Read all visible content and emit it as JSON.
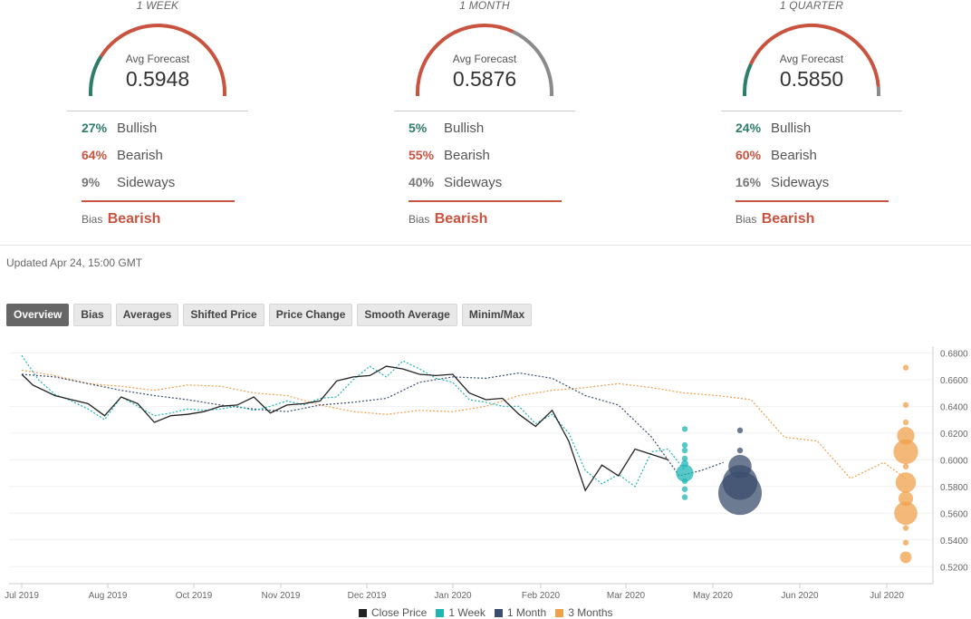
{
  "forecasts": [
    {
      "period": "1 WEEK",
      "avg_label": "Avg Forecast",
      "avg_value": "0.5948",
      "bullish_pct": "27%",
      "bullish_label": "Bullish",
      "bearish_pct": "64%",
      "bearish_label": "Bearish",
      "sideways_pct": "9%",
      "sideways_label": "Sideways",
      "bias_label": "Bias",
      "bias_value": "Bearish",
      "gauge": {
        "bullish": 0.27,
        "bearish": 0.64,
        "sideways": 0.09
      }
    },
    {
      "period": "1 MONTH",
      "avg_label": "Avg Forecast",
      "avg_value": "0.5876",
      "bullish_pct": "5%",
      "bullish_label": "Bullish",
      "bearish_pct": "55%",
      "bearish_label": "Bearish",
      "sideways_pct": "40%",
      "sideways_label": "Sideways",
      "bias_label": "Bias",
      "bias_value": "Bearish",
      "gauge": {
        "bullish": 0.05,
        "bearish": 0.55,
        "sideways": 0.4
      }
    },
    {
      "period": "1 QUARTER",
      "avg_label": "Avg Forecast",
      "avg_value": "0.5850",
      "bullish_pct": "24%",
      "bullish_label": "Bullish",
      "bearish_pct": "60%",
      "bearish_label": "Bearish",
      "sideways_pct": "16%",
      "sideways_label": "Sideways",
      "bias_label": "Bias",
      "bias_value": "Bearish",
      "gauge": {
        "bullish": 0.24,
        "bearish": 0.6,
        "sideways": 0.16
      }
    }
  ],
  "colors": {
    "bullish": "#2e7d6b",
    "bearish": "#c9533f",
    "sideways": "#8a8a8a"
  },
  "updated": "Updated Apr 24, 15:00 GMT",
  "tabs": [
    "Overview",
    "Bias",
    "Averages",
    "Shifted Price",
    "Price Change",
    "Smooth Average",
    "Minim/Max"
  ],
  "active_tab": "Overview",
  "chart_data": {
    "type": "line",
    "x_ticks": [
      "Jul 2019",
      "Aug 2019",
      "Oct 2019",
      "Nov 2019",
      "Dec 2019",
      "Jan 2020",
      "Feb 2020",
      "Mar 2020",
      "May 2020",
      "Jun 2020",
      "Jul 2020"
    ],
    "y_ticks": [
      "0.6800",
      "0.6600",
      "0.6400",
      "0.6200",
      "0.6000",
      "0.5800",
      "0.5600",
      "0.5400",
      "0.5200"
    ],
    "ylim": [
      0.51,
      0.685
    ],
    "legend": [
      {
        "name": "Close Price",
        "color": "#222222"
      },
      {
        "name": "1 Week",
        "color": "#1fb5b5"
      },
      {
        "name": "1 Month",
        "color": "#3b4d6e"
      },
      {
        "name": "3 Months",
        "color": "#f0a04b"
      }
    ],
    "series": [
      {
        "name": "Close Price",
        "color": "#222222",
        "style": "solid",
        "points": [
          [
            0,
            0.664
          ],
          [
            0.2,
            0.656
          ],
          [
            0.6,
            0.648
          ],
          [
            0.9,
            0.645
          ],
          [
            1.2,
            0.642
          ],
          [
            1.5,
            0.633
          ],
          [
            1.8,
            0.647
          ],
          [
            2.1,
            0.642
          ],
          [
            2.4,
            0.628
          ],
          [
            2.7,
            0.633
          ],
          [
            3.0,
            0.634
          ],
          [
            3.3,
            0.636
          ],
          [
            3.6,
            0.64
          ],
          [
            3.9,
            0.641
          ],
          [
            4.2,
            0.647
          ],
          [
            4.5,
            0.635
          ],
          [
            4.8,
            0.641
          ],
          [
            5.1,
            0.642
          ],
          [
            5.4,
            0.644
          ],
          [
            5.7,
            0.659
          ],
          [
            6.0,
            0.662
          ],
          [
            6.3,
            0.663
          ],
          [
            6.6,
            0.67
          ],
          [
            6.9,
            0.668
          ],
          [
            7.2,
            0.664
          ],
          [
            7.5,
            0.663
          ],
          [
            7.8,
            0.664
          ],
          [
            8.1,
            0.65
          ],
          [
            8.4,
            0.645
          ],
          [
            8.7,
            0.646
          ],
          [
            9.0,
            0.634
          ],
          [
            9.3,
            0.625
          ],
          [
            9.6,
            0.637
          ],
          [
            9.9,
            0.614
          ],
          [
            10.2,
            0.577
          ],
          [
            10.5,
            0.596
          ],
          [
            10.8,
            0.588
          ],
          [
            11.1,
            0.608
          ],
          [
            11.4,
            0.604
          ],
          [
            11.7,
            0.6
          ]
        ]
      },
      {
        "name": "1 Week",
        "color": "#1fb5b5",
        "style": "dotted",
        "points": [
          [
            0,
            0.678
          ],
          [
            0.3,
            0.66
          ],
          [
            0.6,
            0.649
          ],
          [
            0.9,
            0.644
          ],
          [
            1.2,
            0.638
          ],
          [
            1.5,
            0.63
          ],
          [
            1.8,
            0.647
          ],
          [
            2.1,
            0.64
          ],
          [
            2.4,
            0.633
          ],
          [
            2.7,
            0.635
          ],
          [
            3.0,
            0.638
          ],
          [
            3.3,
            0.637
          ],
          [
            3.6,
            0.638
          ],
          [
            3.9,
            0.64
          ],
          [
            4.2,
            0.637
          ],
          [
            4.5,
            0.64
          ],
          [
            4.8,
            0.644
          ],
          [
            5.1,
            0.641
          ],
          [
            5.4,
            0.646
          ],
          [
            5.7,
            0.647
          ],
          [
            6.0,
            0.66
          ],
          [
            6.3,
            0.67
          ],
          [
            6.6,
            0.662
          ],
          [
            6.9,
            0.674
          ],
          [
            7.2,
            0.668
          ],
          [
            7.5,
            0.661
          ],
          [
            7.8,
            0.658
          ],
          [
            8.1,
            0.645
          ],
          [
            8.4,
            0.643
          ],
          [
            8.7,
            0.64
          ],
          [
            9.0,
            0.64
          ],
          [
            9.3,
            0.627
          ],
          [
            9.6,
            0.634
          ],
          [
            9.9,
            0.62
          ],
          [
            10.2,
            0.592
          ],
          [
            10.5,
            0.582
          ],
          [
            10.8,
            0.589
          ],
          [
            11.1,
            0.58
          ],
          [
            11.4,
            0.606
          ],
          [
            11.7,
            0.608
          ],
          [
            12.0,
            0.592
          ]
        ]
      },
      {
        "name": "1 Month",
        "color": "#3b4d6e",
        "style": "dotted",
        "points": [
          [
            0,
            0.664
          ],
          [
            0.6,
            0.662
          ],
          [
            1.2,
            0.657
          ],
          [
            1.8,
            0.652
          ],
          [
            2.4,
            0.648
          ],
          [
            3.0,
            0.645
          ],
          [
            3.6,
            0.641
          ],
          [
            4.2,
            0.638
          ],
          [
            4.8,
            0.636
          ],
          [
            5.4,
            0.641
          ],
          [
            6.0,
            0.643
          ],
          [
            6.6,
            0.646
          ],
          [
            7.2,
            0.658
          ],
          [
            7.8,
            0.662
          ],
          [
            8.4,
            0.661
          ],
          [
            9.0,
            0.665
          ],
          [
            9.6,
            0.661
          ],
          [
            10.2,
            0.648
          ],
          [
            10.8,
            0.641
          ],
          [
            11.4,
            0.617
          ],
          [
            11.9,
            0.588
          ],
          [
            12.3,
            0.592
          ],
          [
            12.7,
            0.598
          ]
        ]
      },
      {
        "name": "3 Months",
        "color": "#f0a04b",
        "style": "dotted",
        "points": [
          [
            0,
            0.667
          ],
          [
            0.6,
            0.663
          ],
          [
            1.2,
            0.657
          ],
          [
            1.8,
            0.655
          ],
          [
            2.4,
            0.652
          ],
          [
            3.0,
            0.656
          ],
          [
            3.6,
            0.655
          ],
          [
            4.2,
            0.65
          ],
          [
            4.8,
            0.648
          ],
          [
            5.4,
            0.641
          ],
          [
            6.0,
            0.636
          ],
          [
            6.6,
            0.634
          ],
          [
            7.2,
            0.637
          ],
          [
            7.8,
            0.636
          ],
          [
            8.4,
            0.64
          ],
          [
            9.0,
            0.648
          ],
          [
            9.6,
            0.652
          ],
          [
            10.2,
            0.654
          ],
          [
            10.8,
            0.657
          ],
          [
            11.4,
            0.654
          ],
          [
            12.0,
            0.65
          ],
          [
            12.6,
            0.648
          ],
          [
            13.2,
            0.645
          ],
          [
            13.8,
            0.617
          ],
          [
            14.4,
            0.614
          ],
          [
            15.0,
            0.586
          ],
          [
            15.6,
            0.598
          ],
          [
            16.0,
            0.586
          ]
        ]
      }
    ],
    "bubbles": [
      {
        "series": "1 Week",
        "x": 12.0,
        "color": "#1fb5b5",
        "values": [
          [
            0.623,
            0.4
          ],
          [
            0.611,
            0.4
          ],
          [
            0.607,
            0.4
          ],
          [
            0.601,
            0.4
          ],
          [
            0.597,
            0.5
          ],
          [
            0.59,
            1.2
          ],
          [
            0.584,
            0.4
          ],
          [
            0.578,
            0.4
          ],
          [
            0.572,
            0.4
          ]
        ]
      },
      {
        "series": "1 Month",
        "x": 13.0,
        "color": "#3b4d6e",
        "values": [
          [
            0.622,
            0.4
          ],
          [
            0.607,
            0.4
          ],
          [
            0.595,
            1.6
          ],
          [
            0.583,
            2.4
          ],
          [
            0.575,
            3.0
          ]
        ]
      },
      {
        "series": "3 Months",
        "x": 16.0,
        "color": "#f0a04b",
        "values": [
          [
            0.669,
            0.4
          ],
          [
            0.641,
            0.4
          ],
          [
            0.628,
            0.4
          ],
          [
            0.618,
            1.2
          ],
          [
            0.606,
            1.7
          ],
          [
            0.595,
            0.4
          ],
          [
            0.583,
            1.4
          ],
          [
            0.571,
            1.0
          ],
          [
            0.56,
            1.6
          ],
          [
            0.549,
            0.4
          ],
          [
            0.538,
            0.4
          ],
          [
            0.527,
            0.8
          ]
        ]
      }
    ]
  }
}
